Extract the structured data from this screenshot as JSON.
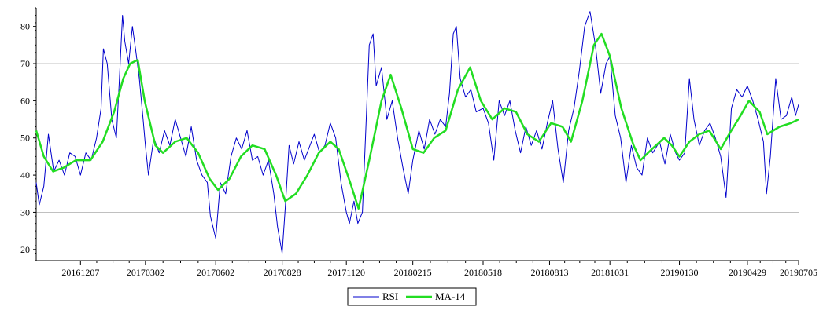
{
  "chart_data": {
    "type": "line",
    "title": "",
    "xlabel": "",
    "ylabel": "",
    "ylim": [
      17,
      85
    ],
    "y_ticks": [
      20,
      30,
      40,
      50,
      60,
      70,
      80
    ],
    "y_gridlines": [
      30,
      70
    ],
    "grid": "horizontal",
    "legend_position": "bottom-center",
    "x_range": [
      "2016-10-10",
      "2019-07-05"
    ],
    "x_tick_labels": [
      {
        "label": "20161207",
        "date": "2016-12-07"
      },
      {
        "label": "20170302",
        "date": "2017-03-02"
      },
      {
        "label": "20170602",
        "date": "2017-06-02"
      },
      {
        "label": "20170828",
        "date": "2017-08-28"
      },
      {
        "label": "20171120",
        "date": "2017-11-20"
      },
      {
        "label": "20180215",
        "date": "2018-02-15"
      },
      {
        "label": "20180518",
        "date": "2018-05-18"
      },
      {
        "label": "20180813",
        "date": "2018-08-13"
      },
      {
        "label": "20181031",
        "date": "2018-10-31"
      },
      {
        "label": "20190130",
        "date": "2019-01-30"
      },
      {
        "label": "20190429",
        "date": "2019-04-29"
      },
      {
        "label": "20190705",
        "date": "2019-07-05"
      }
    ],
    "series": [
      {
        "name": "RSI",
        "color": "#0000cc",
        "points": [
          [
            "2016-10-10",
            38
          ],
          [
            "2016-10-14",
            32
          ],
          [
            "2016-10-20",
            37
          ],
          [
            "2016-10-26",
            51
          ],
          [
            "2016-11-02",
            41
          ],
          [
            "2016-11-09",
            44
          ],
          [
            "2016-11-16",
            40
          ],
          [
            "2016-11-23",
            46
          ],
          [
            "2016-11-30",
            45
          ],
          [
            "2016-12-07",
            40
          ],
          [
            "2016-12-14",
            46
          ],
          [
            "2016-12-21",
            44
          ],
          [
            "2016-12-28",
            50
          ],
          [
            "2017-01-03",
            58
          ],
          [
            "2017-01-06",
            74
          ],
          [
            "2017-01-11",
            70
          ],
          [
            "2017-01-17",
            55
          ],
          [
            "2017-01-23",
            50
          ],
          [
            "2017-01-27",
            66
          ],
          [
            "2017-01-31",
            83
          ],
          [
            "2017-02-03",
            76
          ],
          [
            "2017-02-08",
            70
          ],
          [
            "2017-02-13",
            80
          ],
          [
            "2017-02-17",
            74
          ],
          [
            "2017-02-22",
            66
          ],
          [
            "2017-02-27",
            55
          ],
          [
            "2017-03-02",
            48
          ],
          [
            "2017-03-06",
            40
          ],
          [
            "2017-03-13",
            50
          ],
          [
            "2017-03-20",
            46
          ],
          [
            "2017-03-27",
            52
          ],
          [
            "2017-04-03",
            48
          ],
          [
            "2017-04-10",
            55
          ],
          [
            "2017-04-17",
            50
          ],
          [
            "2017-04-24",
            45
          ],
          [
            "2017-05-01",
            53
          ],
          [
            "2017-05-08",
            44
          ],
          [
            "2017-05-15",
            40
          ],
          [
            "2017-05-22",
            38
          ],
          [
            "2017-05-26",
            29
          ],
          [
            "2017-06-02",
            23
          ],
          [
            "2017-06-08",
            38
          ],
          [
            "2017-06-15",
            35
          ],
          [
            "2017-06-22",
            45
          ],
          [
            "2017-06-29",
            50
          ],
          [
            "2017-07-06",
            47
          ],
          [
            "2017-07-13",
            52
          ],
          [
            "2017-07-20",
            44
          ],
          [
            "2017-07-27",
            45
          ],
          [
            "2017-08-03",
            40
          ],
          [
            "2017-08-10",
            44
          ],
          [
            "2017-08-17",
            35
          ],
          [
            "2017-08-22",
            26
          ],
          [
            "2017-08-28",
            19
          ],
          [
            "2017-09-01",
            31
          ],
          [
            "2017-09-06",
            48
          ],
          [
            "2017-09-12",
            43
          ],
          [
            "2017-09-19",
            49
          ],
          [
            "2017-09-26",
            44
          ],
          [
            "2017-10-09",
            51
          ],
          [
            "2017-10-16",
            46
          ],
          [
            "2017-10-23",
            48
          ],
          [
            "2017-10-30",
            54
          ],
          [
            "2017-11-06",
            50
          ],
          [
            "2017-11-13",
            38
          ],
          [
            "2017-11-20",
            30
          ],
          [
            "2017-11-24",
            27
          ],
          [
            "2017-11-30",
            33
          ],
          [
            "2017-12-05",
            27
          ],
          [
            "2017-12-11",
            30
          ],
          [
            "2017-12-15",
            50
          ],
          [
            "2017-12-20",
            75
          ],
          [
            "2017-12-25",
            78
          ],
          [
            "2017-12-29",
            64
          ],
          [
            "2018-01-05",
            69
          ],
          [
            "2018-01-12",
            55
          ],
          [
            "2018-01-19",
            60
          ],
          [
            "2018-01-26",
            50
          ],
          [
            "2018-02-02",
            42
          ],
          [
            "2018-02-09",
            35
          ],
          [
            "2018-02-15",
            44
          ],
          [
            "2018-02-23",
            52
          ],
          [
            "2018-03-02",
            47
          ],
          [
            "2018-03-09",
            55
          ],
          [
            "2018-03-16",
            51
          ],
          [
            "2018-03-23",
            55
          ],
          [
            "2018-03-30",
            53
          ],
          [
            "2018-04-04",
            62
          ],
          [
            "2018-04-09",
            78
          ],
          [
            "2018-04-13",
            80
          ],
          [
            "2018-04-18",
            66
          ],
          [
            "2018-04-25",
            61
          ],
          [
            "2018-05-02",
            63
          ],
          [
            "2018-05-09",
            57
          ],
          [
            "2018-05-18",
            58
          ],
          [
            "2018-05-25",
            54
          ],
          [
            "2018-06-01",
            44
          ],
          [
            "2018-06-08",
            60
          ],
          [
            "2018-06-15",
            56
          ],
          [
            "2018-06-22",
            60
          ],
          [
            "2018-06-29",
            52
          ],
          [
            "2018-07-06",
            46
          ],
          [
            "2018-07-13",
            53
          ],
          [
            "2018-07-20",
            48
          ],
          [
            "2018-07-27",
            52
          ],
          [
            "2018-08-03",
            47
          ],
          [
            "2018-08-10",
            54
          ],
          [
            "2018-08-17",
            60
          ],
          [
            "2018-08-24",
            47
          ],
          [
            "2018-08-31",
            38
          ],
          [
            "2018-09-07",
            52
          ],
          [
            "2018-09-14",
            58
          ],
          [
            "2018-09-21",
            68
          ],
          [
            "2018-09-28",
            80
          ],
          [
            "2018-10-05",
            84
          ],
          [
            "2018-10-12",
            75
          ],
          [
            "2018-10-19",
            62
          ],
          [
            "2018-10-26",
            70
          ],
          [
            "2018-10-31",
            72
          ],
          [
            "2018-11-07",
            56
          ],
          [
            "2018-11-14",
            50
          ],
          [
            "2018-11-21",
            38
          ],
          [
            "2018-11-28",
            48
          ],
          [
            "2018-12-05",
            42
          ],
          [
            "2018-12-12",
            40
          ],
          [
            "2018-12-19",
            50
          ],
          [
            "2018-12-26",
            46
          ],
          [
            "2019-01-04",
            49
          ],
          [
            "2019-01-11",
            43
          ],
          [
            "2019-01-18",
            51
          ],
          [
            "2019-01-25",
            46
          ],
          [
            "2019-01-30",
            44
          ],
          [
            "2019-02-06",
            46
          ],
          [
            "2019-02-12",
            66
          ],
          [
            "2019-02-18",
            55
          ],
          [
            "2019-02-25",
            48
          ],
          [
            "2019-03-04",
            52
          ],
          [
            "2019-03-11",
            54
          ],
          [
            "2019-03-18",
            50
          ],
          [
            "2019-03-25",
            45
          ],
          [
            "2019-04-01",
            34
          ],
          [
            "2019-04-08",
            58
          ],
          [
            "2019-04-15",
            63
          ],
          [
            "2019-04-22",
            61
          ],
          [
            "2019-04-29",
            64
          ],
          [
            "2019-05-06",
            60
          ],
          [
            "2019-05-13",
            55
          ],
          [
            "2019-05-20",
            49
          ],
          [
            "2019-05-24",
            35
          ],
          [
            "2019-05-29",
            45
          ],
          [
            "2019-06-05",
            66
          ],
          [
            "2019-06-12",
            55
          ],
          [
            "2019-06-19",
            56
          ],
          [
            "2019-06-26",
            61
          ],
          [
            "2019-07-01",
            56
          ],
          [
            "2019-07-05",
            59
          ]
        ]
      },
      {
        "name": "MA-14",
        "color": "#22dd22",
        "points": [
          [
            "2016-10-10",
            52
          ],
          [
            "2016-10-20",
            45
          ],
          [
            "2016-11-01",
            41
          ],
          [
            "2016-11-15",
            42
          ],
          [
            "2016-12-01",
            44
          ],
          [
            "2016-12-20",
            44
          ],
          [
            "2017-01-05",
            49
          ],
          [
            "2017-01-20",
            57
          ],
          [
            "2017-02-01",
            66
          ],
          [
            "2017-02-10",
            70
          ],
          [
            "2017-02-20",
            71
          ],
          [
            "2017-03-01",
            60
          ],
          [
            "2017-03-15",
            48
          ],
          [
            "2017-03-25",
            46
          ],
          [
            "2017-04-10",
            49
          ],
          [
            "2017-04-25",
            50
          ],
          [
            "2017-05-10",
            46
          ],
          [
            "2017-05-25",
            39
          ],
          [
            "2017-06-05",
            36
          ],
          [
            "2017-06-20",
            39
          ],
          [
            "2017-07-05",
            45
          ],
          [
            "2017-07-20",
            48
          ],
          [
            "2017-08-05",
            47
          ],
          [
            "2017-08-20",
            40
          ],
          [
            "2017-09-01",
            33
          ],
          [
            "2017-09-15",
            35
          ],
          [
            "2017-09-30",
            40
          ],
          [
            "2017-10-15",
            46
          ],
          [
            "2017-10-30",
            49
          ],
          [
            "2017-11-10",
            47
          ],
          [
            "2017-11-25",
            38
          ],
          [
            "2017-12-06",
            31
          ],
          [
            "2017-12-20",
            44
          ],
          [
            "2018-01-05",
            60
          ],
          [
            "2018-01-17",
            67
          ],
          [
            "2018-01-31",
            58
          ],
          [
            "2018-02-15",
            47
          ],
          [
            "2018-03-01",
            46
          ],
          [
            "2018-03-15",
            50
          ],
          [
            "2018-03-30",
            52
          ],
          [
            "2018-04-15",
            63
          ],
          [
            "2018-05-01",
            69
          ],
          [
            "2018-05-15",
            60
          ],
          [
            "2018-05-30",
            55
          ],
          [
            "2018-06-15",
            58
          ],
          [
            "2018-06-30",
            57
          ],
          [
            "2018-07-15",
            51
          ],
          [
            "2018-07-30",
            49
          ],
          [
            "2018-08-15",
            54
          ],
          [
            "2018-08-30",
            53
          ],
          [
            "2018-09-10",
            49
          ],
          [
            "2018-09-25",
            60
          ],
          [
            "2018-10-10",
            75
          ],
          [
            "2018-10-20",
            78
          ],
          [
            "2018-10-31",
            72
          ],
          [
            "2018-11-15",
            58
          ],
          [
            "2018-12-01",
            48
          ],
          [
            "2018-12-10",
            44
          ],
          [
            "2018-12-25",
            47
          ],
          [
            "2019-01-10",
            50
          ],
          [
            "2019-01-20",
            48
          ],
          [
            "2019-01-30",
            45
          ],
          [
            "2019-02-12",
            49
          ],
          [
            "2019-02-25",
            51
          ],
          [
            "2019-03-10",
            52
          ],
          [
            "2019-03-25",
            47
          ],
          [
            "2019-04-05",
            51
          ],
          [
            "2019-04-20",
            56
          ],
          [
            "2019-05-01",
            60
          ],
          [
            "2019-05-15",
            57
          ],
          [
            "2019-05-25",
            51
          ],
          [
            "2019-06-10",
            53
          ],
          [
            "2019-06-25",
            54
          ],
          [
            "2019-07-05",
            55
          ]
        ]
      }
    ]
  }
}
